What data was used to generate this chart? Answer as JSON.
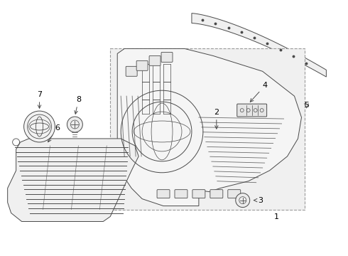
{
  "bg_color": "#ffffff",
  "line_color": "#4a4a4a",
  "label_color": "#000000",
  "fig_width": 4.9,
  "fig_height": 3.6,
  "dpi": 100,
  "box_color": "#c8c8c8",
  "fill_light": "#f2f2f2",
  "fill_mid": "#e8e8e8"
}
